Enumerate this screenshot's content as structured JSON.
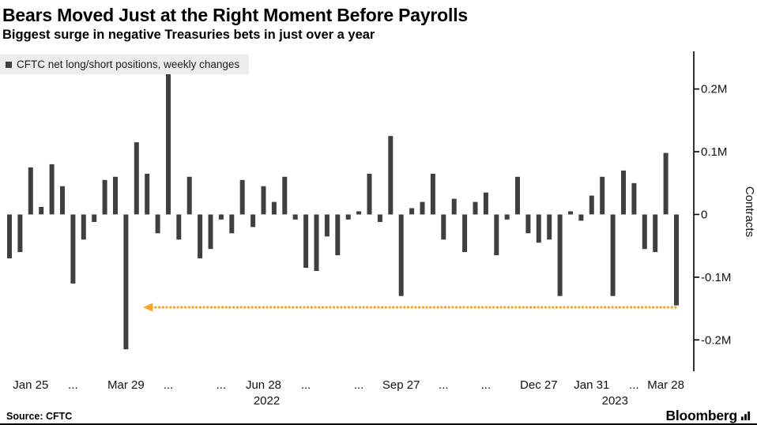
{
  "header": {
    "title": "Bears Moved Just at the Right Moment Before Payrolls",
    "subtitle": "Biggest surge in negative Treasuries bets in just over a year"
  },
  "legend": {
    "swatch_color": "#3f3f3f",
    "label": "CFTC net long/short positions, weekly changes"
  },
  "chart_data": {
    "type": "bar",
    "title": "CFTC net long/short positions, weekly changes",
    "ylabel": "Contracts",
    "unit": "millions of contracts (M)",
    "bar_color": "#3f3f3f",
    "grid": false,
    "axis_side": "right",
    "ylim": [
      -0.25,
      0.26
    ],
    "yticks": [
      {
        "value": 0.2,
        "label": "0.2M"
      },
      {
        "value": 0.1,
        "label": "0.1M"
      },
      {
        "value": 0,
        "label": "0"
      },
      {
        "value": -0.1,
        "label": "-0.1M"
      },
      {
        "value": -0.2,
        "label": "-0.2M"
      }
    ],
    "xticks": [
      {
        "index": 2,
        "label": "Jan 25"
      },
      {
        "index": 6,
        "label": "..."
      },
      {
        "index": 11,
        "label": "Mar 29"
      },
      {
        "index": 15,
        "label": "..."
      },
      {
        "index": 20,
        "label": "..."
      },
      {
        "index": 24,
        "label": "Jun 28"
      },
      {
        "index": 28,
        "label": "..."
      },
      {
        "index": 33,
        "label": "..."
      },
      {
        "index": 37,
        "label": "Sep 27"
      },
      {
        "index": 41,
        "label": "..."
      },
      {
        "index": 45,
        "label": "..."
      },
      {
        "index": 50,
        "label": "Dec 27"
      },
      {
        "index": 55,
        "label": "Jan 31"
      },
      {
        "index": 59,
        "label": "..."
      },
      {
        "index": 62,
        "label": "Mar 28"
      }
    ],
    "year_labels": [
      {
        "index": 24.3,
        "label": "2022"
      },
      {
        "index": 57.2,
        "label": "2023"
      }
    ],
    "values": [
      -0.07,
      -0.06,
      0.075,
      0.012,
      0.08,
      0.045,
      -0.11,
      -0.04,
      -0.012,
      0.055,
      0.06,
      -0.215,
      0.115,
      0.065,
      -0.03,
      0.225,
      -0.04,
      0.06,
      -0.07,
      -0.055,
      -0.008,
      -0.03,
      0.055,
      -0.02,
      0.045,
      0.02,
      0.06,
      -0.008,
      -0.085,
      -0.09,
      -0.035,
      -0.065,
      -0.008,
      0.005,
      0.065,
      -0.012,
      0.125,
      -0.13,
      0.01,
      0.02,
      0.065,
      -0.04,
      0.025,
      -0.06,
      0.02,
      0.035,
      -0.065,
      -0.008,
      0.06,
      -0.03,
      -0.045,
      -0.04,
      -0.13,
      0.005,
      -0.01,
      0.03,
      0.06,
      -0.13,
      0.07,
      0.05,
      -0.055,
      -0.06,
      0.098,
      -0.145
    ],
    "annotation": {
      "shape": "dotted-horizontal-line-with-left-arrow",
      "color": "#f7a427",
      "y_value": -0.148,
      "from_index": 13.3,
      "to_index": 63
    }
  },
  "footer": {
    "source": "Source: CFTC",
    "brand": "Bloomberg"
  }
}
